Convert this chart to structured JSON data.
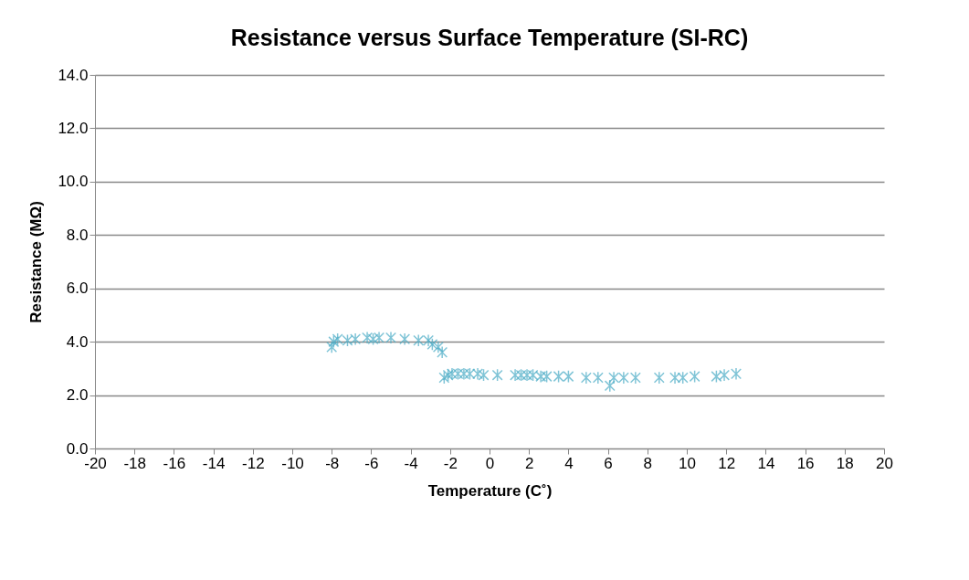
{
  "chart_data": {
    "type": "scatter",
    "title": "Resistance versus Surface Temperature (SI-RC)",
    "xlabel": "Temperature (C˚)",
    "ylabel": "Resistance (MΩ)",
    "marker": "cross",
    "grid": "y",
    "xlim": [
      -20,
      20
    ],
    "xticks": [
      -20,
      -18,
      -16,
      -14,
      -12,
      -10,
      -8,
      -6,
      -4,
      -2,
      0,
      2,
      4,
      6,
      8,
      10,
      12,
      14,
      16,
      18,
      20
    ],
    "ylim": [
      0,
      14
    ],
    "yticks": [
      {
        "value": 0,
        "label": "0.0"
      },
      {
        "value": 2,
        "label": "2.0"
      },
      {
        "value": 4,
        "label": "4.0"
      },
      {
        "value": 6,
        "label": "6.0"
      },
      {
        "value": 8,
        "label": "8.0"
      },
      {
        "value": 10,
        "label": "10.0"
      },
      {
        "value": 12,
        "label": "12.0"
      },
      {
        "value": 14,
        "label": "14.0"
      }
    ],
    "series": [
      {
        "color": "#4bacc6",
        "x": [
          -8.0,
          -7.9,
          -7.7,
          -7.2,
          -6.8,
          -6.2,
          -5.9,
          -5.6,
          -5.0,
          -4.3,
          -3.6,
          -3.1,
          -2.9,
          -2.6,
          -2.4,
          -2.3,
          -2.1,
          -1.9,
          -1.6,
          -1.3,
          -1.0,
          -0.6,
          -0.3,
          0.4,
          1.3,
          1.6,
          1.9,
          2.2,
          2.6,
          2.9,
          3.5,
          4.0,
          4.9,
          5.5,
          6.1,
          6.3,
          6.8,
          7.4,
          8.6,
          9.4,
          9.8,
          10.4,
          11.5,
          11.9,
          12.5
        ],
        "values": [
          3.8,
          4.0,
          4.1,
          4.05,
          4.1,
          4.15,
          4.1,
          4.15,
          4.15,
          4.1,
          4.05,
          4.05,
          3.9,
          3.8,
          3.6,
          2.65,
          2.75,
          2.8,
          2.8,
          2.8,
          2.8,
          2.8,
          2.75,
          2.75,
          2.75,
          2.75,
          2.75,
          2.75,
          2.7,
          2.7,
          2.7,
          2.7,
          2.65,
          2.65,
          2.35,
          2.65,
          2.65,
          2.65,
          2.65,
          2.65,
          2.65,
          2.7,
          2.7,
          2.75,
          2.8
        ]
      }
    ]
  }
}
